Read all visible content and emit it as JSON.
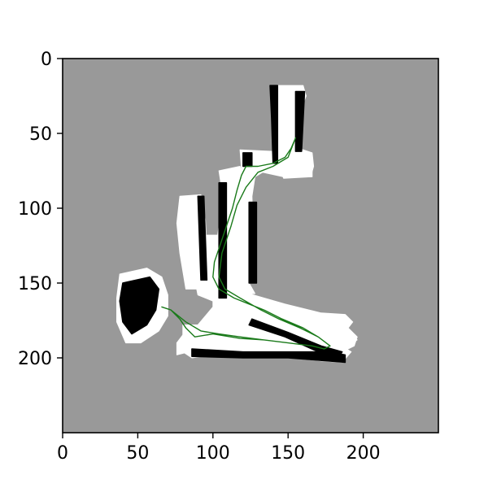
{
  "chart_data": {
    "type": "occupancy-grid-map",
    "xlim": [
      0,
      250
    ],
    "ylim": [
      250,
      0
    ],
    "y_inverted": true,
    "x_ticks": [
      "0",
      "50",
      "100",
      "150",
      "200"
    ],
    "y_ticks": [
      "0",
      "50",
      "100",
      "150",
      "200"
    ],
    "x_tick_values": [
      0,
      50,
      100,
      150,
      200
    ],
    "y_tick_values": [
      0,
      50,
      100,
      150,
      200
    ],
    "grid": false,
    "colors": {
      "unknown": "#999999",
      "free": "#ffffff",
      "occupied": "#000000",
      "path": "#1a7a1a",
      "frame": "#000000"
    },
    "free_regions": [
      {
        "name": "top-room",
        "points": [
          [
            139,
            18
          ],
          [
            160,
            18
          ],
          [
            162,
            25
          ],
          [
            158,
            35
          ],
          [
            157,
            60
          ],
          [
            166,
            63
          ],
          [
            167,
            72
          ],
          [
            165,
            79
          ],
          [
            147,
            80
          ],
          [
            144,
            72
          ],
          [
            141,
            60
          ],
          [
            140,
            30
          ]
        ]
      },
      {
        "name": "upper-corridor",
        "points": [
          [
            118,
            61
          ],
          [
            140,
            62
          ],
          [
            160,
            67
          ],
          [
            166,
            70
          ],
          [
            166,
            79
          ],
          [
            147,
            79
          ],
          [
            133,
            76
          ],
          [
            128,
            79
          ],
          [
            126,
            92
          ],
          [
            127,
            126
          ],
          [
            124,
            150
          ],
          [
            128,
            157
          ],
          [
            116,
            158
          ],
          [
            114,
            148
          ],
          [
            117,
            112
          ],
          [
            120,
            88
          ]
        ]
      },
      {
        "name": "left-annex",
        "points": [
          [
            78,
            92
          ],
          [
            92,
            91
          ],
          [
            95,
            108
          ],
          [
            96,
            133
          ],
          [
            94,
            146
          ],
          [
            92,
            154
          ],
          [
            82,
            154
          ],
          [
            78,
            130
          ],
          [
            76,
            110
          ]
        ]
      },
      {
        "name": "left-block",
        "points": [
          [
            88,
            118
          ],
          [
            104,
            118
          ],
          [
            110,
            128
          ],
          [
            112,
            146
          ],
          [
            112,
            158
          ],
          [
            100,
            162
          ],
          [
            90,
            158
          ],
          [
            86,
            138
          ]
        ]
      },
      {
        "name": "main-corridor",
        "points": [
          [
            104,
            75
          ],
          [
            118,
            72
          ],
          [
            122,
            86
          ],
          [
            116,
            120
          ],
          [
            114,
            146
          ],
          [
            122,
            158
          ],
          [
            148,
            166
          ],
          [
            170,
            172
          ],
          [
            183,
            178
          ],
          [
            190,
            184
          ],
          [
            196,
            188
          ],
          [
            186,
            195
          ],
          [
            172,
            196
          ],
          [
            156,
            196
          ],
          [
            132,
            198
          ],
          [
            115,
            199
          ],
          [
            98,
            198
          ],
          [
            84,
            196
          ],
          [
            76,
            198
          ],
          [
            76,
            190
          ],
          [
            82,
            182
          ],
          [
            90,
            178
          ],
          [
            100,
            166
          ],
          [
            100,
            140
          ],
          [
            104,
            112
          ],
          [
            106,
            88
          ]
        ]
      },
      {
        "name": "right-arm",
        "points": [
          [
            120,
            156
          ],
          [
            148,
            164
          ],
          [
            172,
            170
          ],
          [
            188,
            171
          ],
          [
            193,
            176
          ],
          [
            190,
            180
          ],
          [
            196,
            186
          ],
          [
            194,
            192
          ],
          [
            186,
            196
          ],
          [
            174,
            194
          ],
          [
            162,
            186
          ],
          [
            146,
            180
          ],
          [
            128,
            172
          ],
          [
            118,
            164
          ]
        ]
      },
      {
        "name": "bottom-room",
        "points": [
          [
            80,
            178
          ],
          [
            108,
            178
          ],
          [
            130,
            184
          ],
          [
            160,
            186
          ],
          [
            182,
            190
          ],
          [
            192,
            196
          ],
          [
            186,
            203
          ],
          [
            172,
            202
          ],
          [
            152,
            200
          ],
          [
            128,
            198
          ],
          [
            100,
            198
          ],
          [
            86,
            200
          ],
          [
            80,
            196
          ]
        ]
      },
      {
        "name": "west-clutter",
        "points": [
          [
            38,
            144
          ],
          [
            56,
            140
          ],
          [
            66,
            146
          ],
          [
            70,
            158
          ],
          [
            70,
            172
          ],
          [
            64,
            182
          ],
          [
            52,
            190
          ],
          [
            42,
            190
          ],
          [
            36,
            176
          ],
          [
            36,
            160
          ]
        ]
      }
    ],
    "occupied_regions": [
      {
        "name": "top-room-wall-left",
        "points": [
          [
            138,
            18
          ],
          [
            143,
            18
          ],
          [
            143,
            70
          ],
          [
            140,
            70
          ],
          [
            139,
            40
          ]
        ]
      },
      {
        "name": "top-room-wall-right",
        "points": [
          [
            155,
            22
          ],
          [
            161,
            22
          ],
          [
            159,
            62
          ],
          [
            155,
            62
          ]
        ]
      },
      {
        "name": "corridor-wall-a",
        "points": [
          [
            120,
            63
          ],
          [
            126,
            63
          ],
          [
            126,
            72
          ],
          [
            120,
            72
          ]
        ]
      },
      {
        "name": "corridor-wall-b",
        "points": [
          [
            104,
            83
          ],
          [
            109,
            83
          ],
          [
            109,
            160
          ],
          [
            104,
            160
          ]
        ]
      },
      {
        "name": "corridor-wall-c",
        "points": [
          [
            124,
            96
          ],
          [
            129,
            96
          ],
          [
            129,
            150
          ],
          [
            124,
            150
          ]
        ]
      },
      {
        "name": "bottom-wall",
        "points": [
          [
            86,
            194
          ],
          [
            120,
            196
          ],
          [
            150,
            196
          ],
          [
            178,
            196
          ],
          [
            188,
            198
          ],
          [
            188,
            203
          ],
          [
            176,
            202
          ],
          [
            150,
            200
          ],
          [
            120,
            200
          ],
          [
            86,
            199
          ]
        ]
      },
      {
        "name": "right-arm-wall",
        "points": [
          [
            126,
            174
          ],
          [
            150,
            183
          ],
          [
            172,
            192
          ],
          [
            186,
            196
          ],
          [
            184,
            199
          ],
          [
            170,
            196
          ],
          [
            148,
            186
          ],
          [
            124,
            178
          ]
        ]
      },
      {
        "name": "west-clutter-dark",
        "points": [
          [
            40,
            150
          ],
          [
            58,
            146
          ],
          [
            64,
            154
          ],
          [
            62,
            168
          ],
          [
            56,
            178
          ],
          [
            46,
            184
          ],
          [
            40,
            176
          ],
          [
            38,
            162
          ]
        ]
      },
      {
        "name": "annex-wall",
        "points": [
          [
            90,
            92
          ],
          [
            94,
            92
          ],
          [
            96,
            148
          ],
          [
            92,
            148
          ]
        ]
      }
    ],
    "path": [
      [
        155,
        53
      ],
      [
        152,
        60
      ],
      [
        148,
        66
      ],
      [
        140,
        70
      ],
      [
        130,
        72
      ],
      [
        122,
        72
      ],
      [
        119,
        78
      ],
      [
        116,
        88
      ],
      [
        113,
        100
      ],
      [
        109,
        112
      ],
      [
        105,
        124
      ],
      [
        101,
        136
      ],
      [
        100,
        146
      ],
      [
        104,
        154
      ],
      [
        114,
        160
      ],
      [
        124,
        164
      ],
      [
        134,
        168
      ],
      [
        146,
        174
      ],
      [
        160,
        180
      ],
      [
        170,
        186
      ],
      [
        178,
        192
      ],
      [
        174,
        194
      ],
      [
        166,
        192
      ],
      [
        150,
        190
      ],
      [
        134,
        188
      ],
      [
        118,
        187
      ],
      [
        100,
        184
      ],
      [
        88,
        186
      ],
      [
        82,
        180
      ],
      [
        78,
        174
      ],
      [
        72,
        168
      ],
      [
        66,
        166
      ],
      [
        72,
        168
      ],
      [
        82,
        176
      ],
      [
        92,
        182
      ],
      [
        104,
        184
      ],
      [
        118,
        186
      ],
      [
        134,
        188
      ],
      [
        150,
        190
      ],
      [
        166,
        192
      ],
      [
        174,
        194
      ],
      [
        178,
        192
      ],
      [
        170,
        186
      ],
      [
        158,
        180
      ],
      [
        144,
        174
      ],
      [
        132,
        168
      ],
      [
        118,
        160
      ],
      [
        108,
        154
      ],
      [
        104,
        146
      ],
      [
        106,
        130
      ],
      [
        112,
        112
      ],
      [
        116,
        98
      ],
      [
        122,
        86
      ],
      [
        130,
        76
      ],
      [
        140,
        72
      ],
      [
        150,
        66
      ],
      [
        155,
        53
      ]
    ]
  }
}
